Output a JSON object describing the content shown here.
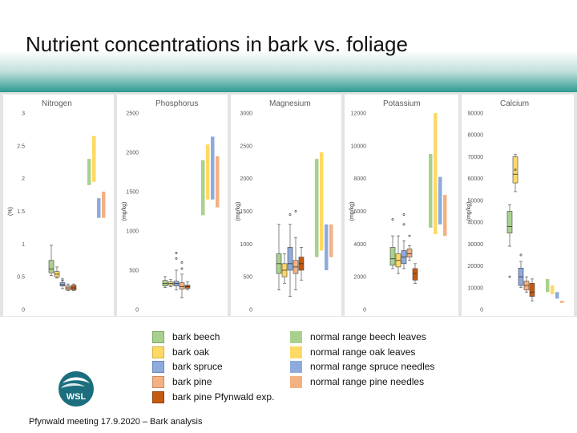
{
  "slide": {
    "title": "Nutrient concentrations in bark vs. foliage",
    "footer": "Pfynwald meeting 17.9.2020 – Bark analysis",
    "logo_text": "WSL"
  },
  "colors": {
    "bark_beech": "#a9d18e",
    "bark_oak": "#ffd966",
    "bark_spruce": "#8faadc",
    "bark_pine": "#f4b183",
    "bark_pine_pfynwald": "#c55a11",
    "range_beech": "#a9d18e",
    "range_oak": "#ffd966",
    "range_spruce": "#8faadc",
    "range_pine": "#f4b183",
    "header_teal": "#2b9a8e"
  },
  "legend": [
    {
      "label": "bark beech",
      "color": "#a9d18e"
    },
    {
      "label": "bark oak",
      "color": "#ffd966"
    },
    {
      "label": "bark spruce",
      "color": "#8faadc"
    },
    {
      "label": "bark pine",
      "color": "#f4b183"
    },
    {
      "label": "bark pine Pfynwald exp.",
      "color": "#c55a11"
    },
    {
      "label": "normal range beech leaves",
      "color": "#a9d18e"
    },
    {
      "label": "normal range oak leaves",
      "color": "#ffd966"
    },
    {
      "label": "normal range spruce needles",
      "color": "#8faadc"
    },
    {
      "label": "normal range pine needles",
      "color": "#f4b183"
    }
  ],
  "chart_data": [
    {
      "type": "box",
      "title": "Nitrogen",
      "ylabel": "(%)",
      "ylim": [
        0,
        3
      ],
      "yticks": [
        "0",
        "0.5",
        "1",
        "1.5",
        "2",
        "2.5",
        "3"
      ],
      "series": [
        {
          "name": "bark beech",
          "whisker_low": 0.52,
          "q1": 0.56,
          "median": 0.62,
          "q3": 0.75,
          "whisker_high": 0.98,
          "outliers": []
        },
        {
          "name": "bark oak",
          "whisker_low": 0.48,
          "q1": 0.5,
          "median": 0.54,
          "q3": 0.58,
          "whisker_high": 0.65,
          "outliers": []
        },
        {
          "name": "bark spruce",
          "whisker_low": 0.32,
          "q1": 0.36,
          "median": 0.38,
          "q3": 0.41,
          "whisker_high": 0.44,
          "outliers": [
            0.46
          ]
        },
        {
          "name": "bark pine",
          "whisker_low": 0.29,
          "q1": 0.3,
          "median": 0.33,
          "q3": 0.36,
          "whisker_high": 0.39,
          "outliers": []
        },
        {
          "name": "bark pine Pfynwald exp.",
          "whisker_low": 0.29,
          "q1": 0.3,
          "median": 0.33,
          "q3": 0.37,
          "whisker_high": 0.39,
          "outliers": []
        }
      ],
      "ranges": [
        {
          "name": "normal range beech leaves",
          "low": 1.9,
          "high": 2.3
        },
        {
          "name": "normal range oak leaves",
          "low": 1.95,
          "high": 2.65
        },
        {
          "name": "normal range spruce needles",
          "low": 1.4,
          "high": 1.7
        },
        {
          "name": "normal range pine needles",
          "low": 1.4,
          "high": 1.8
        }
      ]
    },
    {
      "type": "box",
      "title": "Phosphorus",
      "ylabel": "(mg/kg)",
      "ylim": [
        0,
        2500
      ],
      "yticks": [
        "0",
        "500",
        "1000",
        "1500",
        "2000",
        "2500"
      ],
      "series": [
        {
          "name": "bark beech",
          "whisker_low": 280,
          "q1": 300,
          "median": 330,
          "q3": 370,
          "whisker_high": 420,
          "outliers": []
        },
        {
          "name": "bark oak",
          "whisker_low": 290,
          "q1": 310,
          "median": 330,
          "q3": 350,
          "whisker_high": 380,
          "outliers": []
        },
        {
          "name": "bark spruce",
          "whisker_low": 250,
          "q1": 300,
          "median": 330,
          "q3": 360,
          "whisker_high": 500,
          "outliers": [
            650,
            720
          ]
        },
        {
          "name": "bark pine",
          "whisker_low": 150,
          "q1": 260,
          "median": 290,
          "q3": 340,
          "whisker_high": 450,
          "outliers": [
            520,
            600
          ]
        },
        {
          "name": "bark pine Pfynwald exp.",
          "whisker_low": 250,
          "q1": 270,
          "median": 290,
          "q3": 310,
          "whisker_high": 350,
          "outliers": []
        }
      ],
      "ranges": [
        {
          "name": "normal range beech leaves",
          "low": 1200,
          "high": 1900
        },
        {
          "name": "normal range oak leaves",
          "low": 1400,
          "high": 2100
        },
        {
          "name": "normal range spruce needles",
          "low": 1400,
          "high": 2200
        },
        {
          "name": "normal range pine needles",
          "low": 1300,
          "high": 1950
        }
      ]
    },
    {
      "type": "box",
      "title": "Magnesium",
      "ylabel": "(mg/kg)",
      "ylim": [
        0,
        3000
      ],
      "yticks": [
        "0",
        "500",
        "1000",
        "1500",
        "2000",
        "2500",
        "3000"
      ],
      "series": [
        {
          "name": "bark beech",
          "whisker_low": 300,
          "q1": 550,
          "median": 700,
          "q3": 850,
          "whisker_high": 1300,
          "outliers": []
        },
        {
          "name": "bark oak",
          "whisker_low": 400,
          "q1": 500,
          "median": 600,
          "q3": 700,
          "whisker_high": 850,
          "outliers": []
        },
        {
          "name": "bark spruce",
          "whisker_low": 200,
          "q1": 600,
          "median": 700,
          "q3": 950,
          "whisker_high": 1300,
          "outliers": [
            1450
          ]
        },
        {
          "name": "bark pine",
          "whisker_low": 300,
          "q1": 550,
          "median": 650,
          "q3": 750,
          "whisker_high": 1100,
          "outliers": [
            1500
          ]
        },
        {
          "name": "bark pine Pfynwald exp.",
          "whisker_low": 450,
          "q1": 600,
          "median": 700,
          "q3": 800,
          "whisker_high": 950,
          "outliers": []
        }
      ],
      "ranges": [
        {
          "name": "normal range beech leaves",
          "low": 800,
          "high": 2300
        },
        {
          "name": "normal range oak leaves",
          "low": 900,
          "high": 2400
        },
        {
          "name": "normal range spruce needles",
          "low": 600,
          "high": 1300
        },
        {
          "name": "normal range pine needles",
          "low": 800,
          "high": 1300
        }
      ]
    },
    {
      "type": "box",
      "title": "Potassium",
      "ylabel": "(mg/kg)",
      "ylim": [
        0,
        12000
      ],
      "yticks": [
        "0",
        "2000",
        "4000",
        "6000",
        "8000",
        "10000",
        "12000"
      ],
      "series": [
        {
          "name": "bark beech",
          "whisker_low": 2500,
          "q1": 2700,
          "median": 3100,
          "q3": 3800,
          "whisker_high": 4500,
          "outliers": [
            5500
          ]
        },
        {
          "name": "bark oak",
          "whisker_low": 2200,
          "q1": 2600,
          "median": 3000,
          "q3": 3400,
          "whisker_high": 4500,
          "outliers": []
        },
        {
          "name": "bark spruce",
          "whisker_low": 2500,
          "q1": 2800,
          "median": 3200,
          "q3": 3600,
          "whisker_high": 4200,
          "outliers": [
            5200,
            5800
          ]
        },
        {
          "name": "bark pine",
          "whisker_low": 3000,
          "q1": 3200,
          "median": 3400,
          "q3": 3700,
          "whisker_high": 3900,
          "outliers": [
            4500
          ]
        },
        {
          "name": "bark pine Pfynwald exp.",
          "whisker_low": 1600,
          "q1": 1800,
          "median": 2200,
          "q3": 2500,
          "whisker_high": 2800,
          "outliers": []
        }
      ],
      "ranges": [
        {
          "name": "normal range beech leaves",
          "low": 5000,
          "high": 9500
        },
        {
          "name": "normal range oak leaves",
          "low": 4600,
          "high": 12000
        },
        {
          "name": "normal range spruce needles",
          "low": 5200,
          "high": 8100
        },
        {
          "name": "normal range pine needles",
          "low": 4500,
          "high": 7000
        }
      ]
    },
    {
      "type": "box",
      "title": "Calcium",
      "ylabel": "(mg/kg)",
      "ylim": [
        0,
        90000
      ],
      "yticks": [
        "0",
        "10000",
        "20000",
        "30000",
        "40000",
        "50000",
        "60000",
        "70000",
        "80000",
        "90000"
      ],
      "series": [
        {
          "name": "bark beech",
          "whisker_low": 29000,
          "q1": 35000,
          "median": 38000,
          "q3": 45000,
          "whisker_high": 48000,
          "outliers": [
            15000
          ]
        },
        {
          "name": "bark oak",
          "whisker_low": 54000,
          "q1": 58000,
          "median": 62000,
          "q3": 70000,
          "whisker_high": 71000,
          "outliers": [
            64000
          ]
        },
        {
          "name": "bark spruce",
          "whisker_low": 10000,
          "q1": 11000,
          "median": 15000,
          "q3": 19000,
          "whisker_high": 22000,
          "outliers": [
            25000
          ]
        },
        {
          "name": "bark pine",
          "whisker_low": 8000,
          "q1": 9000,
          "median": 11000,
          "q3": 13000,
          "whisker_high": 15000,
          "outliers": []
        },
        {
          "name": "bark pine Pfynwald exp.",
          "whisker_low": 4000,
          "q1": 6000,
          "median": 8000,
          "q3": 12000,
          "whisker_high": 14000,
          "outliers": []
        }
      ],
      "ranges": [
        {
          "name": "normal range beech leaves",
          "low": 8000,
          "high": 14000
        },
        {
          "name": "normal range oak leaves",
          "low": 7000,
          "high": 11000
        },
        {
          "name": "normal range spruce needles",
          "low": 5000,
          "high": 8000
        },
        {
          "name": "normal range pine needles",
          "low": 3000,
          "high": 4000
        }
      ]
    }
  ]
}
